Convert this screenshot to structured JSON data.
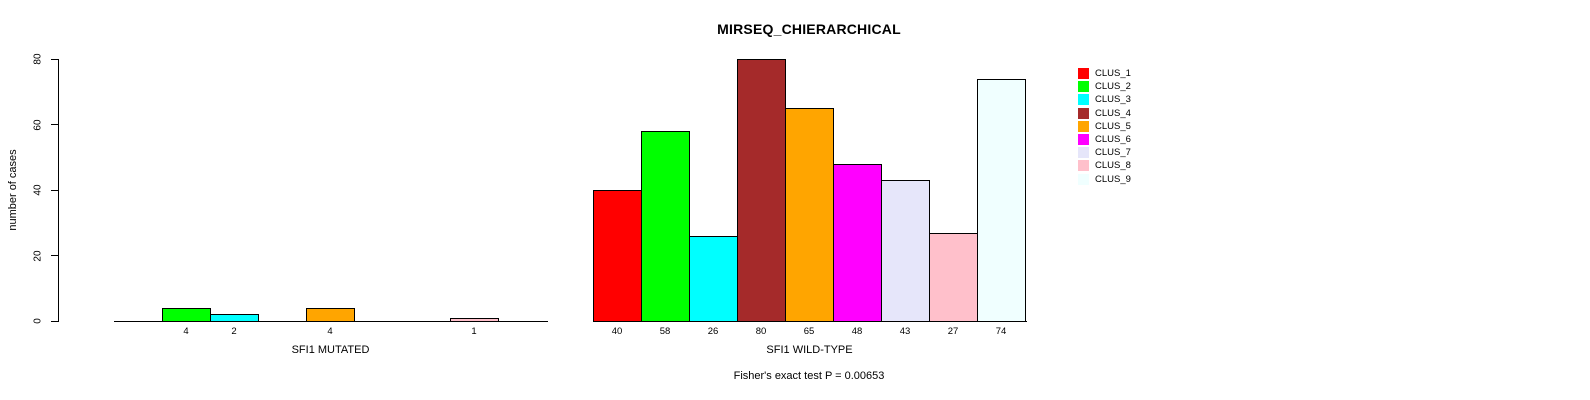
{
  "title": "MIRSEQ_CHIERARCHICAL",
  "footer": "Fisher's exact test P = 0.00653",
  "y_axis": {
    "label": "number of cases",
    "tick_labels": [
      "0",
      "20",
      "40",
      "60",
      "80"
    ]
  },
  "legend": {
    "entries": [
      {
        "label": "CLUS_1",
        "color": "#FF0000"
      },
      {
        "label": "CLUS_2",
        "color": "#00FF00"
      },
      {
        "label": "CLUS_3",
        "color": "#00FFFF"
      },
      {
        "label": "CLUS_4",
        "color": "#A52A2A"
      },
      {
        "label": "CLUS_5",
        "color": "#FFA500"
      },
      {
        "label": "CLUS_6",
        "color": "#FF00FF"
      },
      {
        "label": "CLUS_7",
        "color": "#E6E6FA"
      },
      {
        "label": "CLUS_8",
        "color": "#FFC0CB"
      },
      {
        "label": "CLUS_9",
        "color": "#F0FFFF"
      }
    ]
  },
  "chart_data": {
    "type": "bar",
    "title": "MIRSEQ_CHIERARCHICAL",
    "xlabel": "",
    "ylabel": "number of cases",
    "ylim": [
      0,
      80
    ],
    "yticks": [
      0,
      20,
      40,
      60,
      80
    ],
    "grid": false,
    "legend_position": "right",
    "categories": [
      "CLUS_1",
      "CLUS_2",
      "CLUS_3",
      "CLUS_4",
      "CLUS_5",
      "CLUS_6",
      "CLUS_7",
      "CLUS_8",
      "CLUS_9"
    ],
    "colors": [
      "#FF0000",
      "#00FF00",
      "#00FFFF",
      "#A52A2A",
      "#FFA500",
      "#FF00FF",
      "#E6E6FA",
      "#FFC0CB",
      "#F0FFFF"
    ],
    "series": [
      {
        "name": "SFI1 MUTATED",
        "values": [
          0,
          4,
          2,
          0,
          4,
          0,
          0,
          1,
          0
        ]
      },
      {
        "name": "SFI1 WILD-TYPE",
        "values": [
          40,
          58,
          26,
          80,
          65,
          48,
          43,
          27,
          74
        ]
      }
    ],
    "bar_value_labels": "shown under each non-zero bar",
    "annotation": "Fisher's exact test P = 0.00653"
  }
}
